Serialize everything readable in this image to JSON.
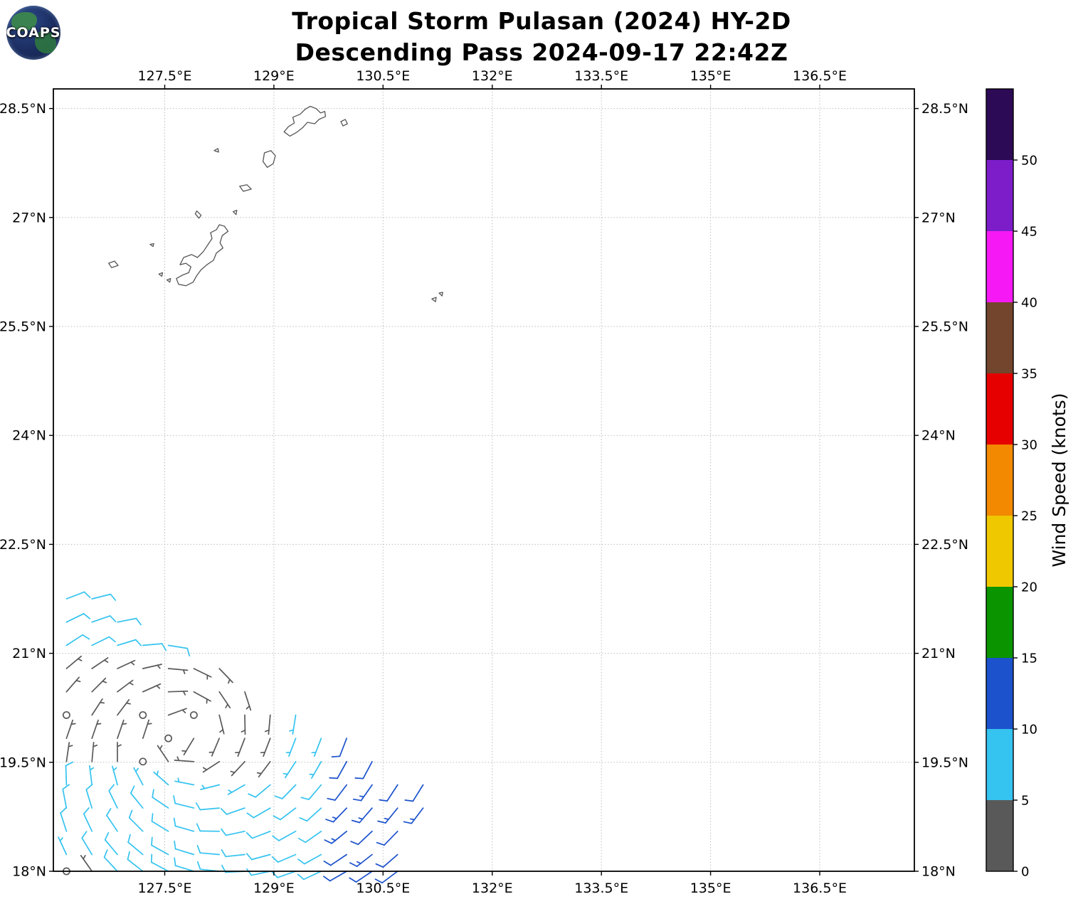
{
  "header": {
    "logo_text": "COAPS",
    "title_line1": "Tropical Storm Pulasan (2024) HY-2D",
    "title_line2": "Descending Pass 2024-09-17 22:42Z"
  },
  "chart_data": {
    "type": "wind_barbs",
    "title": "Tropical Storm Pulasan (2024) HY-2D",
    "subtitle": "Descending Pass 2024-09-17 22:42Z",
    "projection": "lat-lon",
    "grid": true,
    "xlim": [
      125.97,
      137.8
    ],
    "ylim": [
      18.0,
      28.77
    ],
    "x_ticks": [
      {
        "value": 127.5,
        "label": "127.5°E"
      },
      {
        "value": 129.0,
        "label": "129°E"
      },
      {
        "value": 130.5,
        "label": "130.5°E"
      },
      {
        "value": 132.0,
        "label": "132°E"
      },
      {
        "value": 133.5,
        "label": "133.5°E"
      },
      {
        "value": 135.0,
        "label": "135°E"
      },
      {
        "value": 136.5,
        "label": "136.5°E"
      }
    ],
    "y_ticks": [
      {
        "value": 28.5,
        "label": "28.5°N"
      },
      {
        "value": 27.0,
        "label": "27°N"
      },
      {
        "value": 25.5,
        "label": "25.5°N"
      },
      {
        "value": 24.0,
        "label": "24°N"
      },
      {
        "value": 22.5,
        "label": "22.5°N"
      },
      {
        "value": 21.0,
        "label": "21°N"
      },
      {
        "value": 19.5,
        "label": "19.5°N"
      },
      {
        "value": 18.0,
        "label": "18°N"
      }
    ],
    "colorbar": {
      "label": "Wind Speed (knots)",
      "min": 0,
      "max": 55,
      "ticks": [
        0,
        5,
        10,
        15,
        20,
        25,
        30,
        35,
        40,
        45,
        50
      ],
      "position": "right"
    },
    "speed_bins": [
      {
        "from": 0,
        "to": 5,
        "color": "#595959"
      },
      {
        "from": 5,
        "to": 10,
        "color": "#35c3f0"
      },
      {
        "from": 10,
        "to": 15,
        "color": "#1c52cc"
      },
      {
        "from": 15,
        "to": 20,
        "color": "#0a9500"
      },
      {
        "from": 20,
        "to": 25,
        "color": "#f0c800"
      },
      {
        "from": 25,
        "to": 30,
        "color": "#f28900"
      },
      {
        "from": 30,
        "to": 35,
        "color": "#e60000"
      },
      {
        "from": 35,
        "to": 40,
        "color": "#73452c"
      },
      {
        "from": 40,
        "to": 45,
        "color": "#f619f6"
      },
      {
        "from": 45,
        "to": 50,
        "color": "#7d1dca"
      },
      {
        "from": 50,
        "to": 55,
        "color": "#2d0a55"
      }
    ],
    "barb_units": "knots",
    "barbs": [
      [
        126.15,
        21.75,
        69,
        8
      ],
      [
        126.15,
        21.43,
        64,
        8
      ],
      [
        126.15,
        21.11,
        57,
        8
      ],
      [
        126.15,
        20.79,
        50,
        3
      ],
      [
        126.15,
        20.47,
        41,
        3
      ],
      [
        126.15,
        20.15,
        30,
        0
      ],
      [
        126.15,
        19.83,
        19,
        3
      ],
      [
        126.15,
        19.51,
        8,
        3
      ],
      [
        126.15,
        19.19,
        358,
        8
      ],
      [
        126.15,
        18.87,
        349,
        8
      ],
      [
        126.15,
        18.55,
        342,
        8
      ],
      [
        126.15,
        18.23,
        335,
        7
      ],
      [
        126.15,
        18.0,
        332,
        0
      ],
      [
        126.5,
        21.75,
        76,
        8
      ],
      [
        126.5,
        21.43,
        71,
        8
      ],
      [
        126.5,
        21.11,
        64,
        8
      ],
      [
        126.5,
        20.79,
        56,
        3
      ],
      [
        126.5,
        20.47,
        45,
        3
      ],
      [
        126.5,
        20.15,
        33,
        3
      ],
      [
        126.5,
        19.83,
        19,
        3
      ],
      [
        126.5,
        19.51,
        5,
        4
      ],
      [
        126.5,
        19.19,
        353,
        7
      ],
      [
        126.5,
        18.87,
        343,
        8
      ],
      [
        126.5,
        18.55,
        335,
        8
      ],
      [
        126.5,
        18.23,
        329,
        8
      ],
      [
        126.5,
        18.0,
        325,
        4
      ],
      [
        126.85,
        21.43,
        79,
        8
      ],
      [
        126.85,
        21.11,
        73,
        8
      ],
      [
        126.85,
        20.79,
        65,
        3
      ],
      [
        126.85,
        20.47,
        53,
        3
      ],
      [
        126.85,
        20.15,
        37,
        3
      ],
      [
        126.85,
        19.83,
        19,
        3
      ],
      [
        126.85,
        19.51,
        0,
        3
      ],
      [
        126.85,
        19.19,
        345,
        7
      ],
      [
        126.85,
        18.87,
        334,
        8
      ],
      [
        126.85,
        18.55,
        326,
        8
      ],
      [
        126.85,
        18.23,
        320,
        8
      ],
      [
        126.85,
        18.0,
        317,
        8
      ],
      [
        127.2,
        21.11,
        85,
        8
      ],
      [
        127.2,
        20.79,
        77,
        3
      ],
      [
        127.2,
        20.47,
        66,
        3
      ],
      [
        127.2,
        20.15,
        47,
        0
      ],
      [
        127.2,
        19.83,
        18,
        3
      ],
      [
        127.2,
        19.51,
        350,
        0
      ],
      [
        127.2,
        19.19,
        332,
        7
      ],
      [
        127.2,
        18.87,
        321,
        8
      ],
      [
        127.2,
        18.55,
        315,
        8
      ],
      [
        127.2,
        18.23,
        310,
        8
      ],
      [
        127.2,
        18.0,
        308,
        8
      ],
      [
        127.55,
        21.11,
        99,
        8
      ],
      [
        127.55,
        20.79,
        95,
        3
      ],
      [
        127.55,
        20.47,
        88,
        3
      ],
      [
        127.55,
        20.15,
        70,
        3
      ],
      [
        127.55,
        19.83,
        15,
        0
      ],
      [
        127.55,
        19.51,
        326,
        3
      ],
      [
        127.55,
        19.19,
        311,
        7
      ],
      [
        127.55,
        18.87,
        304,
        8
      ],
      [
        127.55,
        18.55,
        301,
        8
      ],
      [
        127.55,
        18.23,
        299,
        8
      ],
      [
        127.55,
        18.0,
        298,
        9
      ],
      [
        127.9,
        20.79,
        116,
        3
      ],
      [
        127.9,
        20.47,
        119,
        3
      ],
      [
        127.9,
        20.15,
        128,
        0
      ],
      [
        127.9,
        19.83,
        211,
        3
      ],
      [
        127.9,
        19.51,
        274,
        4
      ],
      [
        127.9,
        19.19,
        281,
        7
      ],
      [
        127.9,
        18.87,
        284,
        8
      ],
      [
        127.9,
        18.55,
        286,
        8
      ],
      [
        127.9,
        18.23,
        287,
        8
      ],
      [
        127.9,
        18.0,
        287,
        9
      ],
      [
        128.25,
        20.79,
        136,
        3
      ],
      [
        128.25,
        20.47,
        146,
        3
      ],
      [
        128.25,
        20.15,
        166,
        3
      ],
      [
        128.25,
        19.83,
        203,
        3
      ],
      [
        128.25,
        19.51,
        237,
        4
      ],
      [
        128.25,
        19.19,
        256,
        7
      ],
      [
        128.25,
        18.87,
        265,
        8
      ],
      [
        128.25,
        18.55,
        271,
        8
      ],
      [
        128.25,
        18.23,
        275,
        9
      ],
      [
        128.25,
        18.0,
        276,
        9
      ],
      [
        128.6,
        20.47,
        162,
        3
      ],
      [
        128.6,
        20.15,
        179,
        3
      ],
      [
        128.6,
        19.83,
        201,
        4
      ],
      [
        128.6,
        19.51,
        223,
        4
      ],
      [
        128.6,
        19.19,
        240,
        7
      ],
      [
        128.6,
        18.87,
        251,
        8
      ],
      [
        128.6,
        18.55,
        258,
        8
      ],
      [
        128.6,
        18.23,
        264,
        9
      ],
      [
        128.6,
        18.0,
        267,
        9
      ],
      [
        128.95,
        20.15,
        185,
        3
      ],
      [
        128.95,
        19.83,
        201,
        4
      ],
      [
        128.95,
        19.51,
        217,
        4
      ],
      [
        128.95,
        19.19,
        230,
        8
      ],
      [
        128.95,
        18.87,
        240,
        8
      ],
      [
        128.95,
        18.55,
        249,
        8
      ],
      [
        128.95,
        18.23,
        255,
        9
      ],
      [
        128.95,
        18.0,
        258,
        9
      ],
      [
        129.3,
        20.15,
        189,
        6
      ],
      [
        129.3,
        19.83,
        201,
        6
      ],
      [
        129.3,
        19.51,
        213,
        7
      ],
      [
        129.3,
        19.19,
        224,
        8
      ],
      [
        129.3,
        18.87,
        233,
        8
      ],
      [
        129.3,
        18.55,
        241,
        8
      ],
      [
        129.3,
        18.23,
        247,
        9
      ],
      [
        129.3,
        18.0,
        251,
        9
      ],
      [
        129.65,
        19.83,
        201,
        7
      ],
      [
        129.65,
        19.51,
        210,
        7
      ],
      [
        129.65,
        19.19,
        220,
        8
      ],
      [
        129.65,
        18.87,
        228,
        9
      ],
      [
        129.65,
        18.55,
        235,
        9
      ],
      [
        129.65,
        18.23,
        241,
        9
      ],
      [
        129.65,
        18.0,
        245,
        9
      ],
      [
        130.0,
        19.83,
        201,
        12
      ],
      [
        130.0,
        19.51,
        209,
        12
      ],
      [
        130.0,
        19.19,
        217,
        12
      ],
      [
        130.0,
        18.87,
        224,
        13
      ],
      [
        130.0,
        18.55,
        231,
        13
      ],
      [
        130.0,
        18.23,
        236,
        12
      ],
      [
        130.0,
        18.0,
        240,
        12
      ],
      [
        130.35,
        19.51,
        208,
        12
      ],
      [
        130.35,
        19.19,
        215,
        13
      ],
      [
        130.35,
        18.87,
        221,
        13
      ],
      [
        130.35,
        18.55,
        227,
        12
      ],
      [
        130.35,
        18.23,
        232,
        13
      ],
      [
        130.35,
        18.0,
        236,
        12
      ],
      [
        130.7,
        19.19,
        213,
        12
      ],
      [
        130.7,
        18.87,
        219,
        13
      ],
      [
        130.7,
        18.55,
        224,
        12
      ],
      [
        130.7,
        18.23,
        229,
        12
      ],
      [
        130.7,
        18.0,
        233,
        12
      ],
      [
        131.05,
        19.19,
        212,
        12
      ],
      [
        131.05,
        18.87,
        217,
        13
      ]
    ],
    "coastlines": [
      {
        "name": "amami-oshima",
        "points": [
          [
            129.14,
            28.18
          ],
          [
            129.2,
            28.25
          ],
          [
            129.28,
            28.3
          ],
          [
            129.26,
            28.38
          ],
          [
            129.36,
            28.42
          ],
          [
            129.43,
            28.49
          ],
          [
            129.5,
            28.53
          ],
          [
            129.58,
            28.5
          ],
          [
            129.64,
            28.44
          ],
          [
            129.7,
            28.46
          ],
          [
            129.71,
            28.39
          ],
          [
            129.62,
            28.35
          ],
          [
            129.56,
            28.29
          ],
          [
            129.46,
            28.31
          ],
          [
            129.4,
            28.24
          ],
          [
            129.31,
            28.17
          ],
          [
            129.22,
            28.12
          ]
        ]
      },
      {
        "name": "kikai",
        "points": [
          [
            129.92,
            28.32
          ],
          [
            129.98,
            28.35
          ],
          [
            130.01,
            28.29
          ],
          [
            129.95,
            28.26
          ]
        ]
      },
      {
        "name": "tokara-islet",
        "points": [
          [
            128.18,
            27.92
          ],
          [
            128.23,
            27.95
          ],
          [
            128.24,
            27.9
          ]
        ]
      },
      {
        "name": "tokunoshima",
        "points": [
          [
            128.87,
            27.89
          ],
          [
            128.96,
            27.92
          ],
          [
            129.02,
            27.85
          ],
          [
            128.99,
            27.74
          ],
          [
            128.91,
            27.69
          ],
          [
            128.85,
            27.77
          ]
        ]
      },
      {
        "name": "okinoerabu",
        "points": [
          [
            128.53,
            27.43
          ],
          [
            128.63,
            27.45
          ],
          [
            128.69,
            27.39
          ],
          [
            128.58,
            27.36
          ]
        ]
      },
      {
        "name": "yoron",
        "points": [
          [
            128.44,
            27.08
          ],
          [
            128.49,
            27.1
          ],
          [
            128.48,
            27.04
          ]
        ]
      },
      {
        "name": "iheya",
        "points": [
          [
            127.94,
            27.09
          ],
          [
            128.0,
            27.03
          ],
          [
            127.97,
            26.99
          ],
          [
            127.92,
            27.05
          ]
        ]
      },
      {
        "name": "okinawa",
        "points": [
          [
            128.32,
            26.88
          ],
          [
            128.37,
            26.81
          ],
          [
            128.29,
            26.75
          ],
          [
            128.26,
            26.65
          ],
          [
            128.3,
            26.58
          ],
          [
            128.21,
            26.51
          ],
          [
            128.17,
            26.41
          ],
          [
            128.08,
            26.35
          ],
          [
            128.0,
            26.28
          ],
          [
            127.94,
            26.2
          ],
          [
            127.89,
            26.11
          ],
          [
            127.79,
            26.06
          ],
          [
            127.69,
            26.08
          ],
          [
            127.66,
            26.16
          ],
          [
            127.75,
            26.21
          ],
          [
            127.83,
            26.24
          ],
          [
            127.86,
            26.32
          ],
          [
            127.79,
            26.37
          ],
          [
            127.71,
            26.35
          ],
          [
            127.76,
            26.45
          ],
          [
            127.87,
            26.49
          ],
          [
            127.95,
            26.45
          ],
          [
            128.03,
            26.53
          ],
          [
            128.09,
            26.62
          ],
          [
            128.15,
            26.71
          ],
          [
            128.13,
            26.79
          ],
          [
            128.21,
            26.83
          ],
          [
            128.25,
            26.9
          ]
        ]
      },
      {
        "name": "kume",
        "points": [
          [
            126.73,
            26.37
          ],
          [
            126.81,
            26.4
          ],
          [
            126.86,
            26.34
          ],
          [
            126.77,
            26.31
          ]
        ]
      },
      {
        "name": "aguni",
        "points": [
          [
            127.3,
            26.63
          ],
          [
            127.35,
            26.64
          ],
          [
            127.34,
            26.6
          ]
        ]
      },
      {
        "name": "kerama-1",
        "points": [
          [
            127.42,
            26.22
          ],
          [
            127.47,
            26.24
          ],
          [
            127.46,
            26.19
          ]
        ]
      },
      {
        "name": "kerama-2",
        "points": [
          [
            127.53,
            26.14
          ],
          [
            127.58,
            26.16
          ],
          [
            127.57,
            26.11
          ]
        ]
      },
      {
        "name": "kitadaito",
        "points": [
          [
            131.27,
            25.96
          ],
          [
            131.32,
            25.97
          ],
          [
            131.31,
            25.92
          ]
        ]
      },
      {
        "name": "minamidaito",
        "points": [
          [
            131.17,
            25.88
          ],
          [
            131.23,
            25.9
          ],
          [
            131.22,
            25.84
          ]
        ]
      }
    ]
  }
}
